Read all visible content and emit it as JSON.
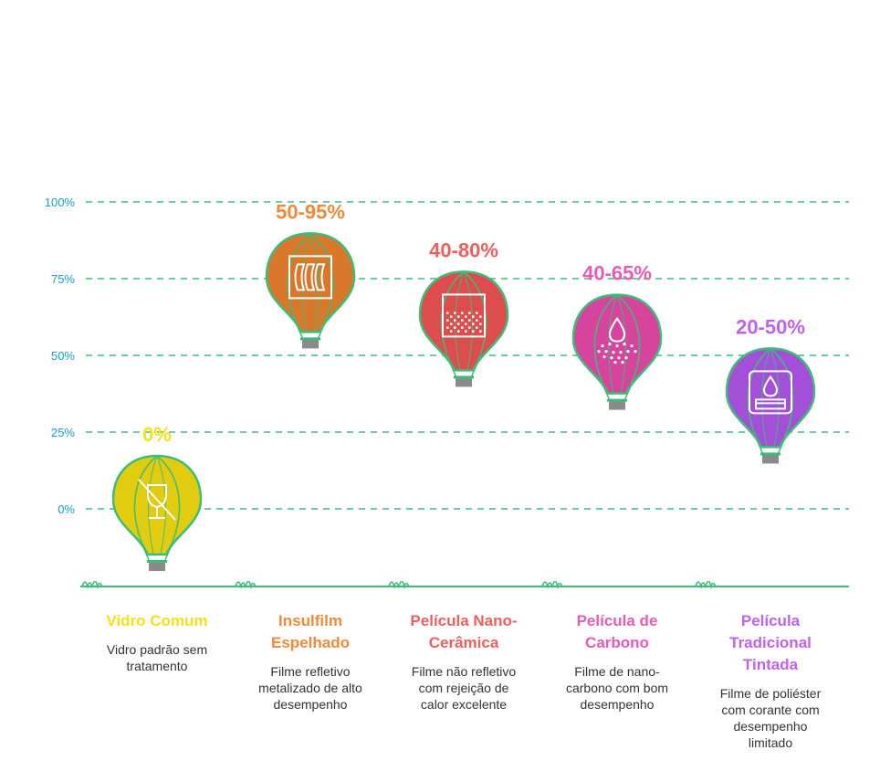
{
  "chart_data": {
    "type": "bar",
    "yticks": [
      "100%",
      "75%",
      "50%",
      "25%",
      "0%"
    ],
    "ytick_values": [
      100,
      75,
      50,
      25,
      0
    ],
    "ylim": [
      0,
      100
    ],
    "grid": true,
    "grid_color": "#3dbd78",
    "tick_color": "#1a9fd6",
    "ground_color": "#3dbd78",
    "series": [
      {
        "category": "Vidro Comum",
        "description": "Vidro padrão sem\ntratamento",
        "value_label": "0%",
        "value": 0,
        "color": "#e2cc10",
        "label_color": "#f5e21c",
        "icon": "no-glass-icon"
      },
      {
        "category": "Insulfilm\nEspelhado",
        "description": "Filme refletivo\nmetalizado de alto\ndesempenho",
        "value_label": "50-95%",
        "value": 72.5,
        "color": "#d9772a",
        "label_color": "#f08a3a",
        "icon": "reflective-film-icon"
      },
      {
        "category": "Película Nano-\nCerâmica",
        "description": "Filme não refletivo\ncom rejeição de\ncalor excelente",
        "value_label": "40-80%",
        "value": 60,
        "color": "#de4d4d",
        "label_color": "#ee5f5f",
        "icon": "ceramic-pattern-icon"
      },
      {
        "category": "Película de\nCarbono",
        "description": "Filme de nano-\ncarbono com bom\ndesempenho",
        "value_label": "40-65%",
        "value": 52.5,
        "color": "#d6449e",
        "label_color": "#e85bb4",
        "icon": "carbon-drop-icon"
      },
      {
        "category": "Película\nTradicional\nTintada",
        "description": "Filme de poliéster\ncom corante com\ndesempenho\nlimitado",
        "value_label": "20-50%",
        "value": 35,
        "color": "#a44fd8",
        "label_color": "#c062ec",
        "icon": "tinted-film-icon"
      }
    ]
  }
}
